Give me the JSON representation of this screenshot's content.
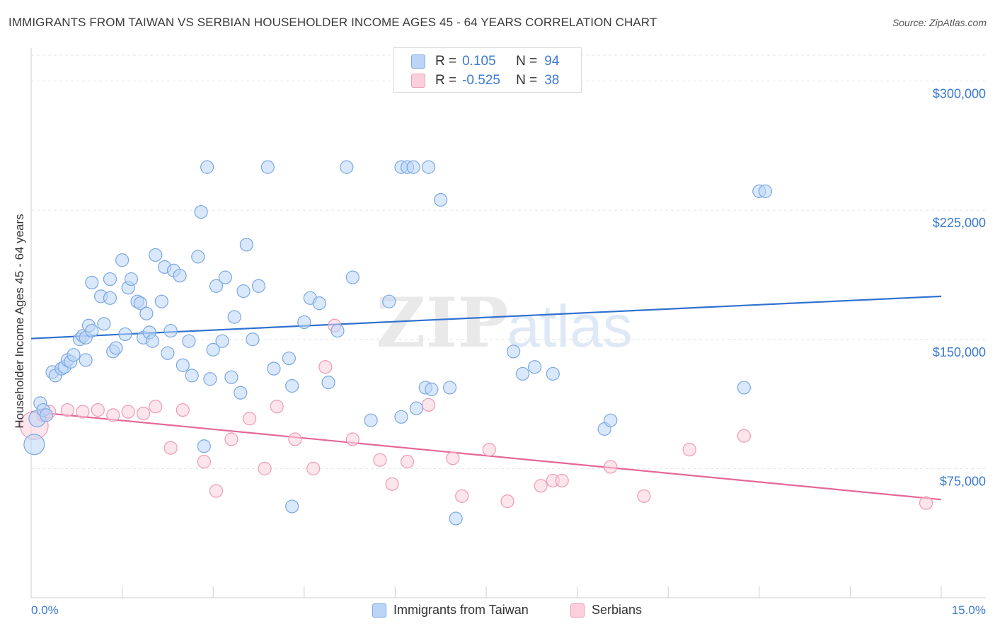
{
  "title": "IMMIGRANTS FROM TAIWAN VS SERBIAN HOUSEHOLDER INCOME AGES 45 - 64 YEARS CORRELATION CHART",
  "source": "Source: ZipAtlas.com",
  "watermark": {
    "zip": "ZIP",
    "atlas": "atlas"
  },
  "legend": {
    "rows": [
      {
        "r_label": "R =",
        "r_value": "0.105",
        "n_label": "N =",
        "n_value": "94"
      },
      {
        "r_label": "R =",
        "r_value": "-0.525",
        "n_label": "N =",
        "n_value": "38"
      }
    ]
  },
  "bottom_legend": {
    "items": [
      {
        "label": "Immigrants from Taiwan"
      },
      {
        "label": "Serbians"
      }
    ]
  },
  "colors": {
    "taiwan_fill": "#bcd5f7",
    "taiwan_stroke": "#7aa7e3",
    "taiwan_line": "#2f72cf",
    "serbian_fill": "#fbd0dc",
    "serbian_stroke": "#ee9ab4",
    "serbian_line": "#e4679a",
    "axis_text": "#3d7ad0",
    "grid": "#e3e3e3"
  },
  "chart_data": {
    "type": "scatter",
    "title": "IMMIGRANTS FROM TAIWAN VS SERBIAN HOUSEHOLDER INCOME AGES 45 - 64 YEARS CORRELATION CHART",
    "xlabel": "",
    "ylabel": "Householder Income Ages 45 - 64 years",
    "xlim": [
      0,
      15
    ],
    "ylim": [
      0,
      315000
    ],
    "x_tick_labels": [
      "0.0%",
      "15.0%"
    ],
    "y_ticks": [
      75000,
      150000,
      225000,
      300000
    ],
    "y_tick_labels": [
      "$75,000",
      "$150,000",
      "$225,000",
      "$300,000"
    ],
    "grid": true,
    "series": [
      {
        "name": "Immigrants from Taiwan",
        "color": "#bcd5f7",
        "trend": {
          "x": [
            0,
            15
          ],
          "y": [
            150500,
            175000
          ]
        },
        "points": [
          [
            0.05,
            89000,
            1.6
          ],
          [
            0.1,
            104000,
            1.3
          ],
          [
            0.15,
            113000,
            1
          ],
          [
            0.2,
            109000,
            1
          ],
          [
            0.25,
            106000,
            1
          ],
          [
            0.35,
            131000,
            1
          ],
          [
            0.4,
            129000,
            1
          ],
          [
            0.5,
            133000,
            1
          ],
          [
            0.55,
            134000,
            1
          ],
          [
            0.6,
            138000,
            1
          ],
          [
            0.65,
            137000,
            1
          ],
          [
            0.7,
            141000,
            1
          ],
          [
            0.8,
            150000,
            1
          ],
          [
            0.85,
            152000,
            1
          ],
          [
            0.9,
            151000,
            1
          ],
          [
            0.9,
            138000,
            1
          ],
          [
            0.95,
            158000,
            1
          ],
          [
            1.0,
            155000,
            1
          ],
          [
            1.0,
            183000,
            1
          ],
          [
            1.15,
            175000,
            1
          ],
          [
            1.2,
            159000,
            1
          ],
          [
            1.3,
            174000,
            1
          ],
          [
            1.3,
            185000,
            1
          ],
          [
            1.35,
            143000,
            1
          ],
          [
            1.4,
            145000,
            1
          ],
          [
            1.5,
            196000,
            1
          ],
          [
            1.55,
            153000,
            1
          ],
          [
            1.6,
            180000,
            1
          ],
          [
            1.65,
            185000,
            1
          ],
          [
            1.75,
            172000,
            1
          ],
          [
            1.8,
            171000,
            1
          ],
          [
            1.85,
            151000,
            1
          ],
          [
            1.9,
            165000,
            1
          ],
          [
            1.95,
            154000,
            1
          ],
          [
            2.0,
            149000,
            1
          ],
          [
            2.05,
            199000,
            1
          ],
          [
            2.15,
            172000,
            1
          ],
          [
            2.2,
            192000,
            1
          ],
          [
            2.25,
            142000,
            1
          ],
          [
            2.3,
            155000,
            1
          ],
          [
            2.35,
            190000,
            1
          ],
          [
            2.45,
            187000,
            1
          ],
          [
            2.5,
            135000,
            1
          ],
          [
            2.6,
            149000,
            1
          ],
          [
            2.65,
            129000,
            1
          ],
          [
            2.75,
            198000,
            1
          ],
          [
            2.8,
            224000,
            1
          ],
          [
            2.85,
            88000,
            1
          ],
          [
            2.9,
            250000,
            1
          ],
          [
            2.95,
            127000,
            1
          ],
          [
            3.0,
            144000,
            1
          ],
          [
            3.05,
            181000,
            1
          ],
          [
            3.15,
            149000,
            1
          ],
          [
            3.2,
            186000,
            1
          ],
          [
            3.3,
            128000,
            1
          ],
          [
            3.35,
            163000,
            1
          ],
          [
            3.45,
            119000,
            1
          ],
          [
            3.5,
            178000,
            1
          ],
          [
            3.55,
            205000,
            1
          ],
          [
            3.65,
            150000,
            1
          ],
          [
            3.75,
            181000,
            1
          ],
          [
            3.9,
            250000,
            1
          ],
          [
            4.0,
            133000,
            1
          ],
          [
            4.3,
            123000,
            1
          ],
          [
            4.25,
            139000,
            1
          ],
          [
            4.5,
            160000,
            1
          ],
          [
            4.6,
            174000,
            1
          ],
          [
            4.75,
            171000,
            1
          ],
          [
            4.9,
            125000,
            1
          ],
          [
            5.05,
            155000,
            1
          ],
          [
            5.2,
            250000,
            1
          ],
          [
            5.3,
            186000,
            1
          ],
          [
            5.6,
            103000,
            1
          ],
          [
            5.9,
            172000,
            1
          ],
          [
            6.1,
            250000,
            1
          ],
          [
            6.1,
            105000,
            1
          ],
          [
            6.2,
            250000,
            1
          ],
          [
            6.3,
            250000,
            1
          ],
          [
            6.35,
            110000,
            1
          ],
          [
            6.5,
            122000,
            1
          ],
          [
            6.55,
            250000,
            1
          ],
          [
            6.6,
            121000,
            1
          ],
          [
            6.75,
            231000,
            1
          ],
          [
            6.9,
            122000,
            1
          ],
          [
            7.0,
            46000,
            1
          ],
          [
            4.3,
            53000,
            1
          ],
          [
            7.95,
            143000,
            1
          ],
          [
            8.1,
            130000,
            1
          ],
          [
            8.3,
            134000,
            1
          ],
          [
            8.6,
            130000,
            1
          ],
          [
            9.45,
            98000,
            1
          ],
          [
            9.55,
            103000,
            1
          ],
          [
            11.75,
            122000,
            1
          ],
          [
            12.0,
            236000,
            1
          ],
          [
            12.1,
            236000,
            1
          ]
        ]
      },
      {
        "name": "Serbians",
        "color": "#fbd0dc",
        "trend": {
          "x": [
            0,
            15
          ],
          "y": [
            108000,
            57000
          ]
        },
        "points": [
          [
            0.05,
            100000,
            2.2
          ],
          [
            0.2,
            106000,
            1
          ],
          [
            0.3,
            108000,
            1
          ],
          [
            0.6,
            109000,
            1
          ],
          [
            0.85,
            108000,
            1
          ],
          [
            1.1,
            109000,
            1
          ],
          [
            1.35,
            106000,
            1
          ],
          [
            1.6,
            108000,
            1
          ],
          [
            1.85,
            107000,
            1
          ],
          [
            2.05,
            111000,
            1
          ],
          [
            2.3,
            87000,
            1
          ],
          [
            2.5,
            109000,
            1
          ],
          [
            2.85,
            79000,
            1
          ],
          [
            3.05,
            62000,
            1
          ],
          [
            3.3,
            92000,
            1
          ],
          [
            3.6,
            104000,
            1
          ],
          [
            3.85,
            75000,
            1
          ],
          [
            4.05,
            111000,
            1
          ],
          [
            4.35,
            92000,
            1
          ],
          [
            4.65,
            75000,
            1
          ],
          [
            4.85,
            134000,
            1
          ],
          [
            5.0,
            158000,
            1
          ],
          [
            5.3,
            92000,
            1
          ],
          [
            5.75,
            80000,
            1
          ],
          [
            5.95,
            66000,
            1
          ],
          [
            6.2,
            79000,
            1
          ],
          [
            6.55,
            112000,
            1
          ],
          [
            6.95,
            81000,
            1
          ],
          [
            7.1,
            59000,
            1
          ],
          [
            7.55,
            86000,
            1
          ],
          [
            7.85,
            56000,
            1
          ],
          [
            8.4,
            65000,
            1
          ],
          [
            8.6,
            68000,
            1
          ],
          [
            8.75,
            68000,
            1
          ],
          [
            9.55,
            76000,
            1
          ],
          [
            10.1,
            59000,
            1
          ],
          [
            10.85,
            86000,
            1
          ],
          [
            11.75,
            94000,
            1
          ],
          [
            14.75,
            55000,
            1
          ]
        ]
      }
    ]
  }
}
